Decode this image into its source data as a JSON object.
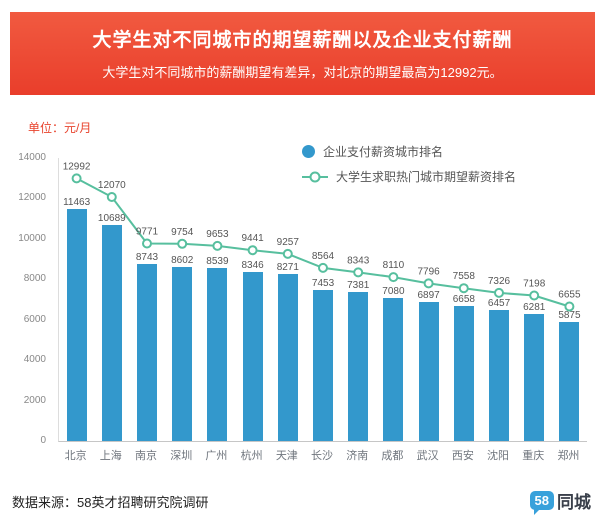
{
  "banner": {
    "title": "大学生对不同城市的期望薪酬以及企业支付薪酬",
    "subtitle": "大学生对不同城市的薪酬期望有差异，对北京的期望最高为12992元。"
  },
  "unit_label": "单位：元/月",
  "legend": {
    "bar_label": "企业支付薪资城市排名",
    "line_label": "大学生求职热门城市期望薪资排名"
  },
  "chart_data": {
    "type": "bar",
    "title": "大学生对不同城市的期望薪酬以及企业支付薪酬",
    "xlabel": "",
    "ylabel": "元/月",
    "ylim": [
      0,
      14000
    ],
    "yticks": [
      0,
      2000,
      4000,
      6000,
      8000,
      10000,
      12000,
      14000
    ],
    "grid": false,
    "legend_position": "top-right",
    "categories": [
      "北京",
      "上海",
      "南京",
      "深圳",
      "广州",
      "杭州",
      "天津",
      "长沙",
      "济南",
      "成都",
      "武汉",
      "西安",
      "沈阳",
      "重庆",
      "郑州"
    ],
    "series": [
      {
        "name": "企业支付薪资城市排名",
        "type": "bar",
        "values": [
          11463,
          10689,
          8743,
          8602,
          8539,
          8346,
          8271,
          7453,
          7381,
          7080,
          6897,
          6658,
          6457,
          6281,
          5875
        ]
      },
      {
        "name": "大学生求职热门城市期望薪资排名",
        "type": "line",
        "values": [
          12992,
          12070,
          9771,
          9754,
          9653,
          9441,
          9257,
          8564,
          8343,
          8110,
          7796,
          7558,
          7326,
          7198,
          6655
        ]
      }
    ]
  },
  "footer": {
    "source": "数据来源：58英才招聘研究院调研",
    "logo_58": "58",
    "logo_city": "同城"
  },
  "colors": {
    "banner": "#ed4a33",
    "bar": "#3398cc",
    "line": "#57bf9e",
    "unit_label": "#e8442e",
    "value_label": "#555555",
    "logo_blue": "#38a1db"
  }
}
